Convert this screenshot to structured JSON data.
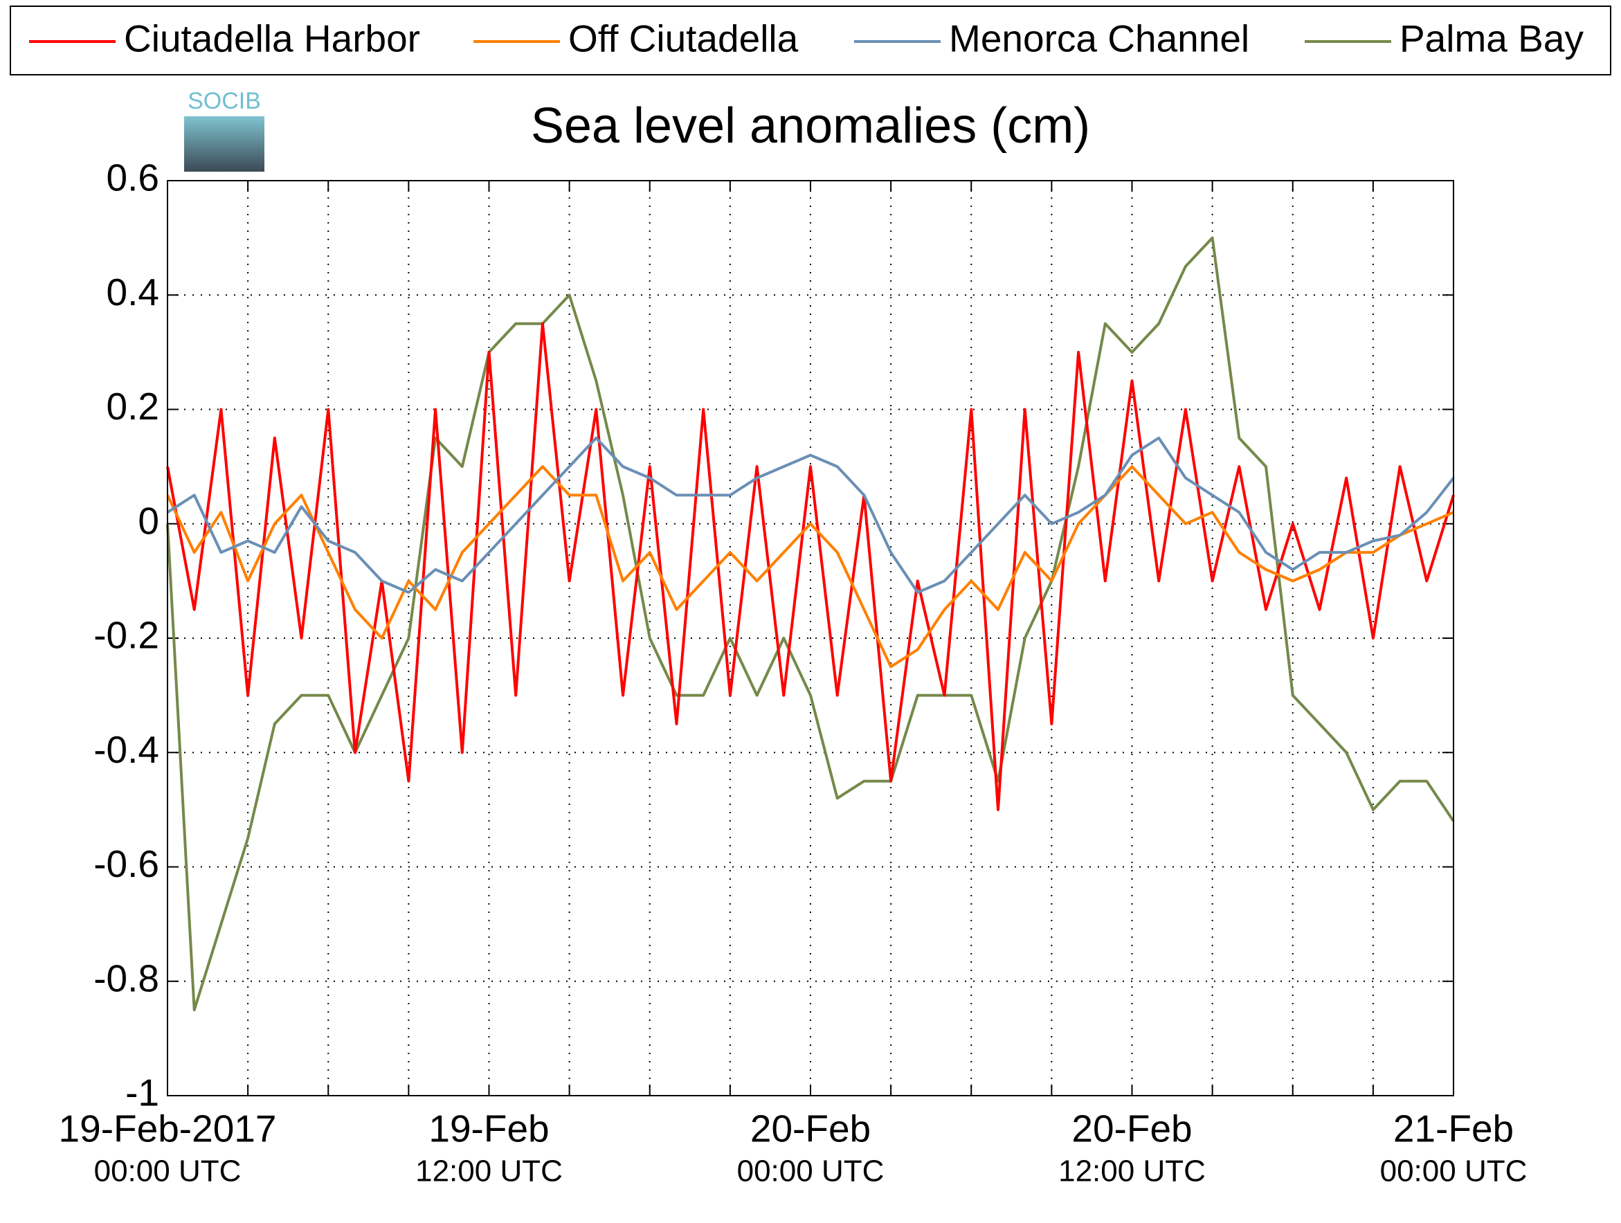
{
  "chart_data": {
    "type": "line",
    "title": "Sea level anomalies (cm)",
    "logo": "SOCIB",
    "x": [
      "2017-02-19T00:00",
      "2017-02-19T01:00",
      "2017-02-19T02:00",
      "2017-02-19T03:00",
      "2017-02-19T04:00",
      "2017-02-19T05:00",
      "2017-02-19T06:00",
      "2017-02-19T07:00",
      "2017-02-19T08:00",
      "2017-02-19T09:00",
      "2017-02-19T10:00",
      "2017-02-19T11:00",
      "2017-02-19T12:00",
      "2017-02-19T13:00",
      "2017-02-19T14:00",
      "2017-02-19T15:00",
      "2017-02-19T16:00",
      "2017-02-19T17:00",
      "2017-02-19T18:00",
      "2017-02-19T19:00",
      "2017-02-19T20:00",
      "2017-02-19T21:00",
      "2017-02-19T22:00",
      "2017-02-19T23:00",
      "2017-02-20T00:00",
      "2017-02-20T01:00",
      "2017-02-20T02:00",
      "2017-02-20T03:00",
      "2017-02-20T04:00",
      "2017-02-20T05:00",
      "2017-02-20T06:00",
      "2017-02-20T07:00",
      "2017-02-20T08:00",
      "2017-02-20T09:00",
      "2017-02-20T10:00",
      "2017-02-20T11:00",
      "2017-02-20T12:00",
      "2017-02-20T13:00",
      "2017-02-20T14:00",
      "2017-02-20T15:00",
      "2017-02-20T16:00",
      "2017-02-20T17:00",
      "2017-02-20T18:00",
      "2017-02-20T19:00",
      "2017-02-20T20:00",
      "2017-02-20T21:00",
      "2017-02-20T22:00",
      "2017-02-20T23:00",
      "2017-02-21T00:00"
    ],
    "series": [
      {
        "name": "Ciutadella Harbor",
        "color": "#ff0000",
        "values": [
          0.1,
          -0.15,
          0.2,
          -0.3,
          0.15,
          -0.2,
          0.2,
          -0.4,
          -0.1,
          -0.45,
          0.2,
          -0.4,
          0.3,
          -0.3,
          0.35,
          -0.1,
          0.2,
          -0.3,
          0.1,
          -0.35,
          0.2,
          -0.3,
          0.1,
          -0.3,
          0.1,
          -0.3,
          0.05,
          -0.45,
          -0.1,
          -0.3,
          0.2,
          -0.5,
          0.2,
          -0.35,
          0.3,
          -0.1,
          0.25,
          -0.1,
          0.2,
          -0.1,
          0.1,
          -0.15,
          0.0,
          -0.15,
          0.08,
          -0.2,
          0.1,
          -0.1,
          0.05
        ]
      },
      {
        "name": "Off Ciutadella",
        "color": "#ff8000",
        "values": [
          0.05,
          -0.05,
          0.02,
          -0.1,
          0.0,
          0.05,
          -0.05,
          -0.15,
          -0.2,
          -0.1,
          -0.15,
          -0.05,
          0.0,
          0.05,
          0.1,
          0.05,
          0.05,
          -0.1,
          -0.05,
          -0.15,
          -0.1,
          -0.05,
          -0.1,
          -0.05,
          0.0,
          -0.05,
          -0.15,
          -0.25,
          -0.22,
          -0.15,
          -0.1,
          -0.15,
          -0.05,
          -0.1,
          0.0,
          0.05,
          0.1,
          0.05,
          0.0,
          0.02,
          -0.05,
          -0.08,
          -0.1,
          -0.08,
          -0.05,
          -0.05,
          -0.02,
          0.0,
          0.02
        ]
      },
      {
        "name": "Menorca Channel",
        "color": "#6a8fb5",
        "values": [
          0.02,
          0.05,
          -0.05,
          -0.03,
          -0.05,
          0.03,
          -0.03,
          -0.05,
          -0.1,
          -0.12,
          -0.08,
          -0.1,
          -0.05,
          0,
          0.05,
          0.1,
          0.15,
          0.1,
          0.08,
          0.05,
          0.05,
          0.05,
          0.08,
          0.1,
          0.12,
          0.1,
          0.05,
          -0.05,
          -0.12,
          -0.1,
          -0.05,
          0,
          0.05,
          0,
          0.02,
          0.05,
          0.12,
          0.15,
          0.08,
          0.05,
          0.02,
          -0.05,
          -0.08,
          -0.05,
          -0.05,
          -0.03,
          -0.02,
          0.02,
          0.08
        ]
      },
      {
        "name": "Palma Bay",
        "color": "#75894a",
        "values": [
          0,
          -0.85,
          -0.7,
          -0.55,
          -0.35,
          -0.3,
          -0.3,
          -0.4,
          -0.3,
          -0.2,
          0.15,
          0.1,
          0.3,
          0.35,
          0.35,
          0.4,
          0.25,
          0.05,
          -0.2,
          -0.3,
          -0.3,
          -0.2,
          -0.3,
          -0.2,
          -0.3,
          -0.48,
          -0.45,
          -0.45,
          -0.3,
          -0.3,
          -0.3,
          -0.45,
          -0.2,
          -0.1,
          0.1,
          0.35,
          0.3,
          0.35,
          0.45,
          0.5,
          0.15,
          0.1,
          -0.3,
          -0.35,
          -0.4,
          -0.5,
          -0.45,
          -0.45,
          -0.52
        ]
      }
    ],
    "xlim": [
      "2017-02-19T00:00",
      "2017-02-21T00:00"
    ],
    "xticks": [
      {
        "value": "2017-02-19T00:00",
        "label": [
          "19-Feb-2017",
          "00:00 UTC"
        ]
      },
      "2017-02-19T03:00",
      "2017-02-19T06:00",
      "2017-02-19T09:00",
      {
        "value": "2017-02-19T12:00",
        "label": [
          "19-Feb",
          "12:00 UTC"
        ]
      },
      "2017-02-19T15:00",
      "2017-02-19T18:00",
      "2017-02-19T21:00",
      {
        "value": "2017-02-20T00:00",
        "label": [
          "20-Feb",
          "00:00 UTC"
        ]
      },
      "2017-02-20T03:00",
      "2017-02-20T06:00",
      "2017-02-20T09:00",
      {
        "value": "2017-02-20T12:00",
        "label": [
          "20-Feb",
          "12:00 UTC"
        ]
      },
      "2017-02-20T15:00",
      "2017-02-20T18:00",
      "2017-02-20T21:00",
      {
        "value": "2017-02-21T00:00",
        "label": [
          "21-Feb",
          "00:00 UTC"
        ]
      }
    ],
    "ylim": [
      -1,
      0.6
    ],
    "yticks": [
      -1,
      -0.8,
      -0.6,
      -0.4,
      -0.2,
      0,
      0.2,
      0.4,
      0.6
    ],
    "grid": true,
    "legend": "top"
  }
}
